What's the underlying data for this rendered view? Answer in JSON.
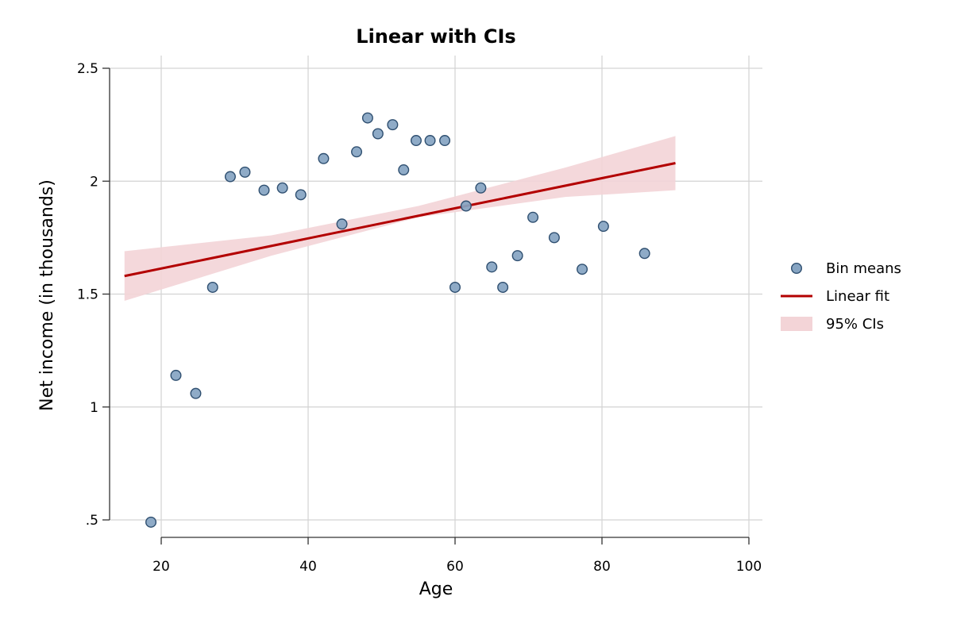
{
  "chart_data": {
    "type": "scatter",
    "title": "Linear with CIs",
    "xlabel": "Age",
    "ylabel": "Net income (in thousands)",
    "xlim": [
      15,
      100
    ],
    "ylim": [
      0.44,
      2.52
    ],
    "x_ticks": [
      20,
      40,
      60,
      80,
      100
    ],
    "x_tick_labels": [
      "20",
      "40",
      "60",
      "80",
      "100"
    ],
    "y_ticks": [
      0.5,
      1,
      1.5,
      2,
      2.5
    ],
    "y_tick_labels": [
      ".5",
      "1",
      "1.5",
      "2",
      "2.5"
    ],
    "grid": true,
    "legend_position": "right",
    "colors": {
      "points_fill": "#86a4c2",
      "points_edge": "#2f4f70",
      "fit_line": "#b30000",
      "ci_band": "#f3d4d7",
      "grid": "#d3d3d3"
    },
    "legend": [
      {
        "label": "Bin means",
        "kind": "marker"
      },
      {
        "label": "Linear fit",
        "kind": "line"
      },
      {
        "label": "95% CIs",
        "kind": "band"
      }
    ],
    "series": [
      {
        "name": "Bin means",
        "kind": "scatter",
        "x": [
          18.6,
          22.0,
          24.7,
          27.0,
          29.4,
          31.4,
          34.0,
          36.5,
          39.0,
          42.1,
          44.6,
          46.6,
          48.1,
          49.5,
          51.5,
          53.0,
          54.7,
          56.6,
          58.6,
          60.0,
          61.5,
          63.5,
          65.0,
          66.5,
          68.5,
          70.6,
          73.5,
          77.3,
          80.2,
          85.8
        ],
        "y": [
          0.49,
          1.14,
          1.06,
          1.53,
          2.02,
          2.04,
          1.96,
          1.97,
          1.94,
          2.1,
          1.81,
          2.13,
          2.28,
          2.21,
          2.25,
          2.05,
          2.18,
          2.18,
          2.18,
          1.53,
          1.89,
          1.97,
          1.62,
          1.53,
          1.67,
          1.84,
          1.75,
          1.61,
          1.8,
          1.68
        ]
      },
      {
        "name": "Linear fit",
        "kind": "line",
        "x": [
          15,
          90
        ],
        "y": [
          1.58,
          2.08
        ]
      },
      {
        "name": "95% CIs",
        "kind": "band",
        "x": [
          15,
          35,
          55,
          75,
          90
        ],
        "lower": [
          1.47,
          1.67,
          1.84,
          1.93,
          1.96
        ],
        "upper": [
          1.69,
          1.76,
          1.89,
          2.06,
          2.2
        ]
      }
    ]
  }
}
